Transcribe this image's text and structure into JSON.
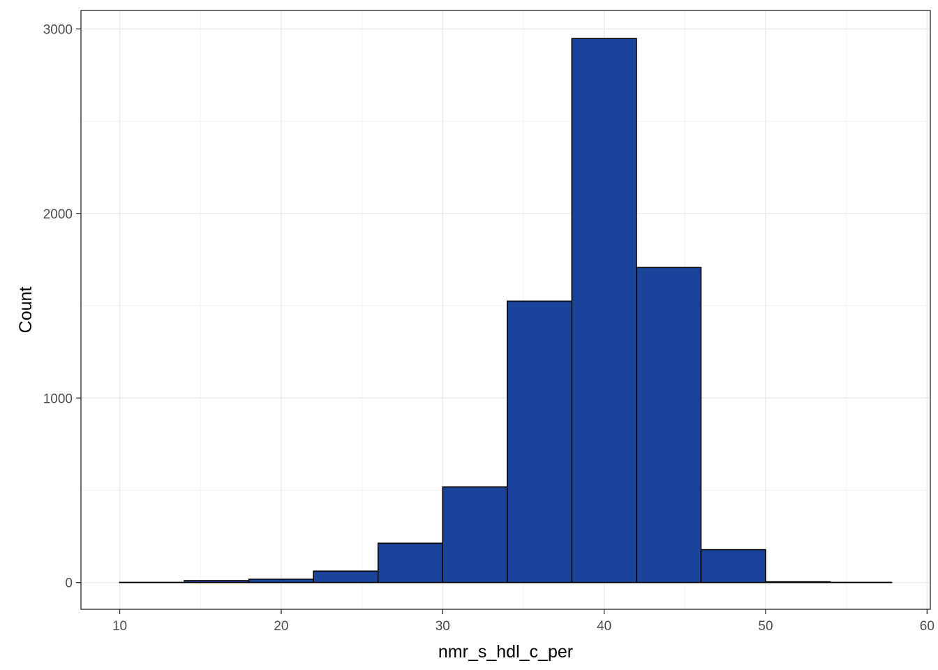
{
  "chart_data": {
    "type": "bar",
    "subtype": "histogram",
    "title": "",
    "xlabel": "nmr_s_hdl_c_per",
    "ylabel": "Count",
    "xlim": [
      7.6,
      60.2
    ],
    "ylim": [
      -145,
      3100
    ],
    "x_ticks": [
      10,
      20,
      30,
      40,
      50,
      60
    ],
    "y_ticks": [
      0,
      1000,
      2000,
      3000
    ],
    "x_tick_labels": [
      "10",
      "20",
      "30",
      "40",
      "50",
      "60"
    ],
    "y_tick_labels": [
      "0",
      "1000",
      "2000",
      "3000"
    ],
    "grid": true,
    "fill_color": "#1a4499",
    "edge_color": "#000000",
    "bins": [
      {
        "x0": 10.0,
        "x1": 14.0,
        "count": 1
      },
      {
        "x0": 14.0,
        "x1": 18.0,
        "count": 10
      },
      {
        "x0": 18.0,
        "x1": 22.0,
        "count": 18
      },
      {
        "x0": 22.0,
        "x1": 26.0,
        "count": 62
      },
      {
        "x0": 26.0,
        "x1": 30.0,
        "count": 213
      },
      {
        "x0": 30.0,
        "x1": 34.0,
        "count": 518
      },
      {
        "x0": 34.0,
        "x1": 38.0,
        "count": 1525
      },
      {
        "x0": 38.0,
        "x1": 42.0,
        "count": 2948
      },
      {
        "x0": 42.0,
        "x1": 46.0,
        "count": 1707
      },
      {
        "x0": 46.0,
        "x1": 50.0,
        "count": 178
      },
      {
        "x0": 50.0,
        "x1": 54.0,
        "count": 4
      },
      {
        "x0": 54.0,
        "x1": 57.8,
        "count": 1
      }
    ]
  }
}
